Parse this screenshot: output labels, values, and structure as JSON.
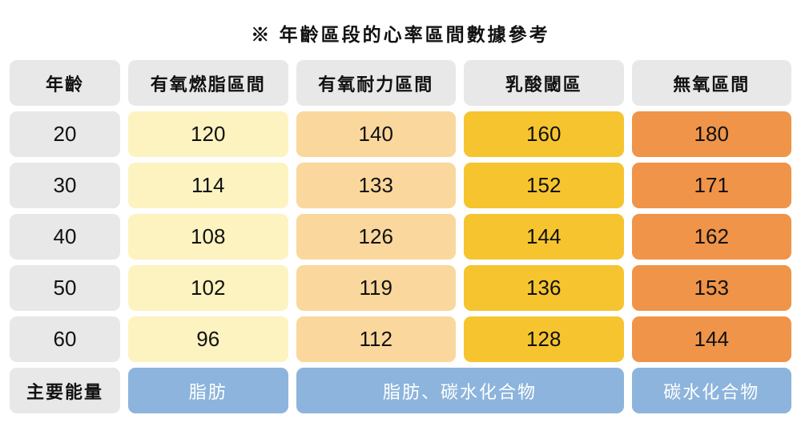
{
  "title": "※ 年齡區段的心率區間數據參考",
  "colors": {
    "gray": "#e8e8e8",
    "yellow": "#fcf3c0",
    "peach": "#fad79c",
    "gold": "#f6c42f",
    "orange": "#ef9449",
    "blue": "#8db4dc"
  },
  "chart_data": {
    "type": "table",
    "title": "※ 年齡區段的心率區間數據參考",
    "columns": [
      "年齡",
      "有氧燃脂區間",
      "有氧耐力區間",
      "乳酸閾區",
      "無氧區間"
    ],
    "rows": [
      {
        "age": "20",
        "values": [
          "120",
          "140",
          "160",
          "180"
        ]
      },
      {
        "age": "30",
        "values": [
          "114",
          "133",
          "152",
          "171"
        ]
      },
      {
        "age": "40",
        "values": [
          "108",
          "126",
          "144",
          "162"
        ]
      },
      {
        "age": "50",
        "values": [
          "102",
          "119",
          "136",
          "153"
        ]
      },
      {
        "age": "60",
        "values": [
          "96",
          "112",
          "128",
          "144"
        ]
      }
    ],
    "footer": {
      "label": "主要能量",
      "cells": [
        {
          "text": "脂肪",
          "span": 1
        },
        {
          "text": "脂肪、碳水化合物",
          "span": 2
        },
        {
          "text": "碳水化合物",
          "span": 1
        }
      ]
    },
    "zone_colors": {
      "有氧燃脂區間": "#fcf3c0",
      "有氧耐力區間": "#fad79c",
      "乳酸閾區": "#f6c42f",
      "無氧區間": "#ef9449"
    }
  }
}
